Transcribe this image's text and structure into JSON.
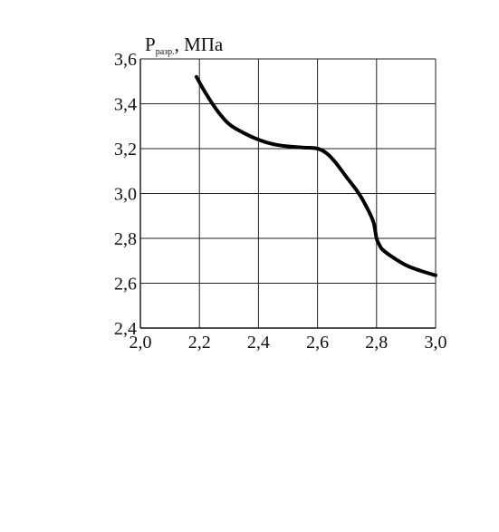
{
  "chart_data": {
    "type": "line",
    "title": "",
    "xlabel": "",
    "ylabel": {
      "main": "P",
      "subscript": "разр.",
      "unit": ", МПа"
    },
    "xlim": [
      2.0,
      3.0
    ],
    "ylim": [
      2.4,
      3.6
    ],
    "x_ticks": [
      "2,0",
      "2,2",
      "2,4",
      "2,6",
      "2,8",
      "3,0"
    ],
    "y_ticks": [
      "2,4",
      "2,6",
      "2,8",
      "3,0",
      "3,2",
      "3,4",
      "3,6"
    ],
    "grid": true,
    "series": [
      {
        "x": [
          2.19,
          2.22,
          2.26,
          2.3,
          2.35,
          2.4,
          2.45,
          2.5,
          2.55,
          2.6,
          2.63,
          2.66,
          2.7,
          2.74,
          2.77,
          2.79,
          2.8,
          2.81,
          2.82,
          2.85,
          2.9,
          2.95,
          3.0
        ],
        "y": [
          3.52,
          3.45,
          3.37,
          3.31,
          3.27,
          3.24,
          3.22,
          3.21,
          3.205,
          3.2,
          3.18,
          3.14,
          3.07,
          3.0,
          2.93,
          2.87,
          2.8,
          2.77,
          2.75,
          2.72,
          2.68,
          2.655,
          2.635
        ],
        "color": "#000000"
      }
    ]
  }
}
